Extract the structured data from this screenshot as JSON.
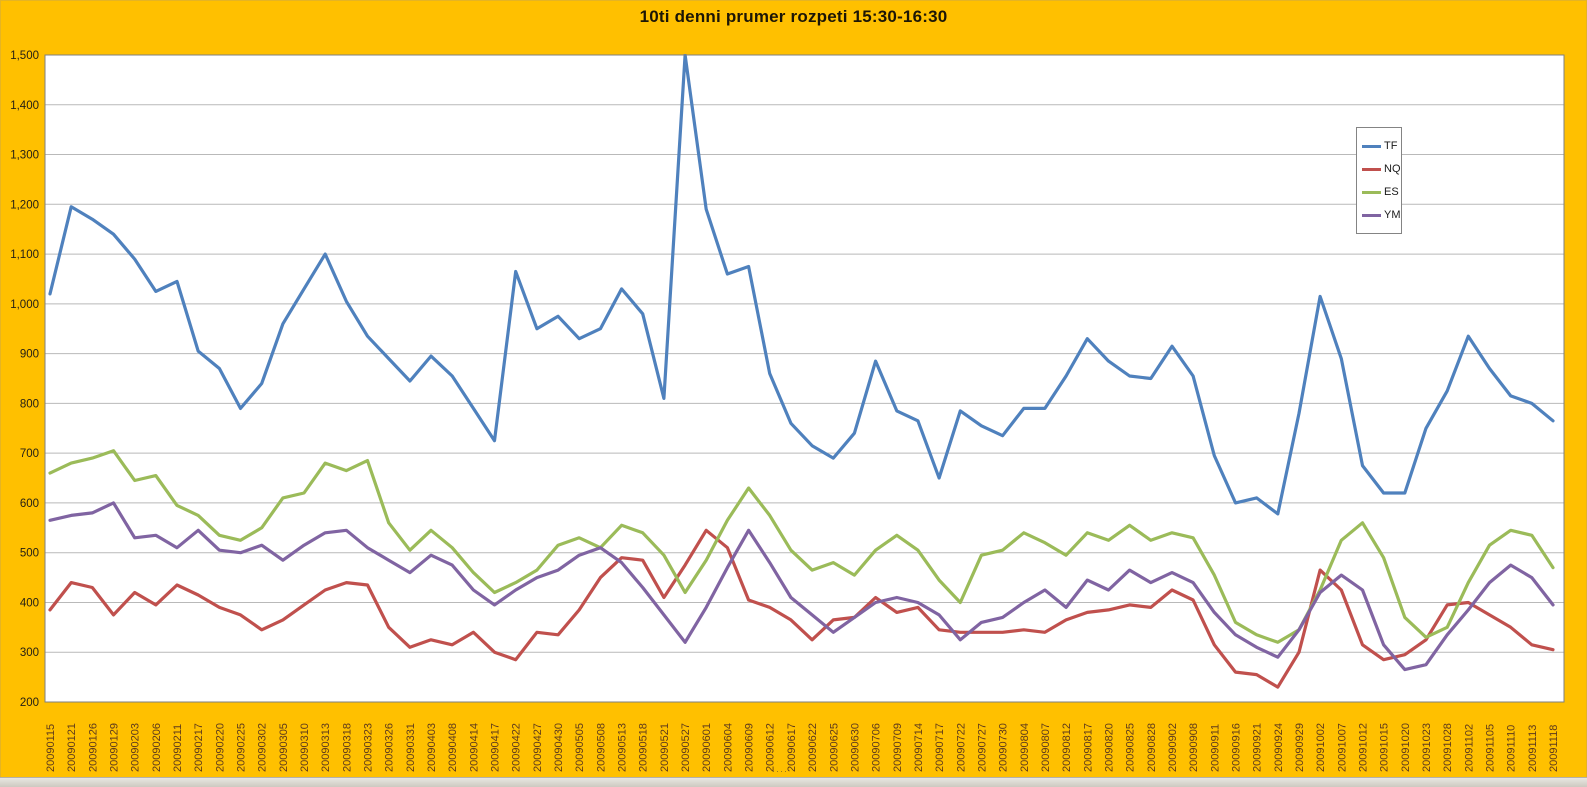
{
  "window": {
    "background": "#FFC000",
    "page_marker": "····"
  },
  "chart": {
    "title": "10ti denni prumer rozpeti 15:30-16:30",
    "plot_bg": "#FFFFFF",
    "plot_border_color": "#7F7F7F",
    "gridline_color": "#B9B9B9",
    "y_label_color": "#262014",
    "x_label_color": "#5e3a1c",
    "legend_border_color": "#848484"
  },
  "chart_data": {
    "type": "line",
    "title": "10ti denni prumer rozpeti 15:30-16:30",
    "grid": true,
    "legend_position": "right",
    "ylim": [
      200,
      1500
    ],
    "y_ticks": [
      "1,500",
      "1,400",
      "1,300",
      "1,200",
      "1,100",
      "1,000",
      "900",
      "800",
      "700",
      "600",
      "500",
      "400",
      "300",
      "200"
    ],
    "y_tick_values": [
      1500,
      1400,
      1300,
      1200,
      1100,
      1000,
      900,
      800,
      700,
      600,
      500,
      400,
      300,
      200
    ],
    "x_labels": [
      "20090115",
      "20090121",
      "20090126",
      "20090129",
      "20090203",
      "20090206",
      "20090211",
      "20090217",
      "20090220",
      "20090225",
      "20090302",
      "20090305",
      "20090310",
      "20090313",
      "20090318",
      "20090323",
      "20090326",
      "20090331",
      "20090403",
      "20090408",
      "20090414",
      "20090417",
      "20090422",
      "20090427",
      "20090430",
      "20090505",
      "20090508",
      "20090513",
      "20090518",
      "20090521",
      "20090527",
      "20090601",
      "20090604",
      "20090609",
      "20090612",
      "20090617",
      "20090622",
      "20090625",
      "20090630",
      "20090706",
      "20090709",
      "20090714",
      "20090717",
      "20090722",
      "20090727",
      "20090730",
      "20090804",
      "20090807",
      "20090812",
      "20090817",
      "20090820",
      "20090825",
      "20090828",
      "20090902",
      "20090908",
      "20090911",
      "20090916",
      "20090921",
      "20090924",
      "20090929",
      "20091002",
      "20091007",
      "20091012",
      "20091015",
      "20091020",
      "20091023",
      "20091028",
      "20091102",
      "20091105",
      "20091110",
      "20091113",
      "20091118"
    ],
    "series": [
      {
        "name": "TF",
        "color": "#4F81BD",
        "values": [
          1020,
          1195,
          1170,
          1140,
          1090,
          1025,
          1045,
          905,
          870,
          790,
          840,
          960,
          1030,
          1100,
          1005,
          935,
          890,
          845,
          895,
          855,
          790,
          725,
          1065,
          950,
          975,
          930,
          950,
          1030,
          980,
          810,
          1500,
          1190,
          1060,
          1075,
          860,
          760,
          715,
          690,
          740,
          885,
          785,
          765,
          650,
          785,
          755,
          735,
          790,
          790,
          855,
          930,
          885,
          855,
          850,
          915,
          855,
          695,
          600,
          610,
          578,
          780,
          1015,
          890,
          675,
          620,
          620,
          750,
          825,
          935,
          870,
          815,
          800,
          765
        ]
      },
      {
        "name": "NQ",
        "color": "#C0504D",
        "values": [
          385,
          440,
          430,
          375,
          420,
          395,
          435,
          415,
          390,
          375,
          345,
          365,
          395,
          425,
          440,
          435,
          350,
          310,
          325,
          315,
          340,
          300,
          285,
          340,
          335,
          385,
          450,
          490,
          485,
          410,
          475,
          545,
          510,
          405,
          390,
          365,
          325,
          365,
          370,
          410,
          380,
          390,
          345,
          340,
          340,
          340,
          345,
          340,
          365,
          380,
          385,
          395,
          390,
          425,
          405,
          315,
          260,
          255,
          230,
          300,
          465,
          425,
          315,
          285,
          295,
          325,
          395,
          400,
          375,
          350,
          315,
          305
        ]
      },
      {
        "name": "ES",
        "color": "#9BBB59",
        "values": [
          660,
          680,
          690,
          705,
          645,
          655,
          595,
          575,
          535,
          525,
          550,
          610,
          620,
          680,
          665,
          685,
          560,
          505,
          545,
          510,
          460,
          420,
          440,
          465,
          515,
          530,
          510,
          555,
          540,
          495,
          420,
          485,
          565,
          630,
          575,
          505,
          465,
          480,
          455,
          505,
          535,
          505,
          445,
          400,
          495,
          505,
          540,
          520,
          495,
          540,
          525,
          555,
          525,
          540,
          530,
          455,
          360,
          335,
          320,
          345,
          425,
          525,
          560,
          490,
          370,
          330,
          350,
          440,
          515,
          545,
          535,
          470
        ]
      },
      {
        "name": "YM",
        "color": "#8064A2",
        "values": [
          565,
          575,
          580,
          600,
          530,
          535,
          510,
          545,
          505,
          500,
          515,
          485,
          515,
          540,
          545,
          510,
          485,
          460,
          495,
          475,
          425,
          395,
          425,
          450,
          465,
          495,
          510,
          480,
          430,
          375,
          320,
          390,
          470,
          545,
          480,
          410,
          375,
          340,
          370,
          400,
          410,
          400,
          375,
          325,
          360,
          370,
          400,
          425,
          390,
          445,
          425,
          465,
          440,
          460,
          440,
          380,
          335,
          310,
          290,
          345,
          420,
          455,
          425,
          315,
          265,
          275,
          335,
          385,
          440,
          475,
          450,
          395
        ]
      }
    ]
  }
}
